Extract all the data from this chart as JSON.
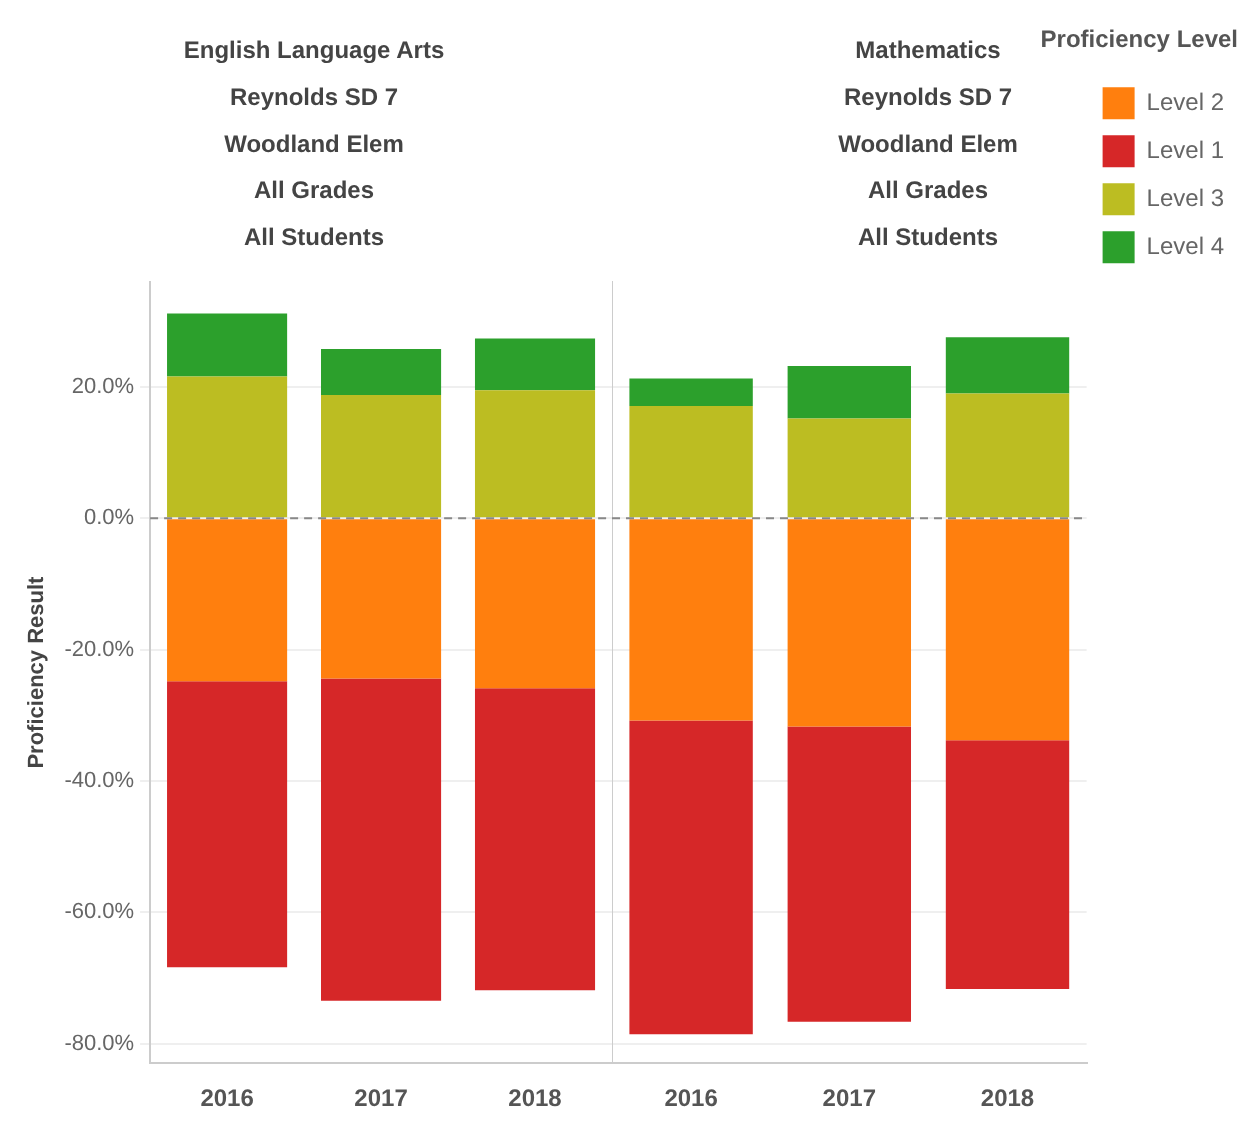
{
  "chart_data": [
    {
      "type": "bar",
      "title": "English Language Arts\nReynolds SD 7\nWoodland Elem\nAll Grades\nAll Students",
      "ylabel": "Proficiency Result",
      "categories": [
        "2016",
        "2017",
        "2018"
      ],
      "stacked": true,
      "series": [
        {
          "color": "#ff7f0e",
          "values": [
            -24.8,
            -24.4,
            -25.9
          ]
        },
        {
          "color": "#d62728",
          "values": [
            -43.6,
            -49.1,
            -46.0
          ]
        },
        {
          "color": "#bcbd22",
          "values": [
            21.6,
            18.8,
            19.5
          ]
        },
        {
          "color": "#2ca02c",
          "values": [
            9.6,
            7.0,
            7.9
          ]
        }
      ],
      "ylim": [
        -83,
        36
      ],
      "yticks": [
        {
          "value": -80,
          "label": "-80.0%"
        },
        {
          "value": -60,
          "label": "-60.0%"
        },
        {
          "value": -40,
          "label": "-40.0%"
        },
        {
          "value": -20,
          "label": "-20.0%"
        },
        {
          "value": 0,
          "label": "0.0%"
        },
        {
          "value": 20,
          "label": "20.0%"
        }
      ],
      "grid": "y",
      "ref_lines": [
        {
          "axis": "y",
          "value": 0,
          "line_style": "dashed"
        }
      ]
    },
    {
      "type": "bar",
      "title": "Mathematics\nReynolds SD 7\nWoodland Elem\nAll Grades\nAll Students",
      "categories": [
        "2016",
        "2017",
        "2018"
      ],
      "stacked": true,
      "legend": "right",
      "legend_title": "Proficiency Level",
      "series": [
        {
          "name": "Level 2",
          "color": "#ff7f0e",
          "values": [
            -30.8,
            -31.7,
            -33.8
          ]
        },
        {
          "name": "Level 1",
          "color": "#d62728",
          "values": [
            -47.8,
            -45.0,
            -37.9
          ]
        },
        {
          "name": "Level 3",
          "color": "#bcbd22",
          "values": [
            17.1,
            15.2,
            19.0
          ]
        },
        {
          "name": "Level 4",
          "color": "#2ca02c",
          "values": [
            4.2,
            8.0,
            8.6
          ]
        }
      ],
      "ylim": [
        -83,
        36
      ],
      "yticks": [
        -80,
        -60,
        -40,
        -20,
        0,
        20
      ],
      "tick_labels": "x",
      "grid": "y",
      "ref_lines": [
        {
          "axis": "y",
          "value": 0,
          "line_style": "dashed"
        }
      ]
    }
  ]
}
